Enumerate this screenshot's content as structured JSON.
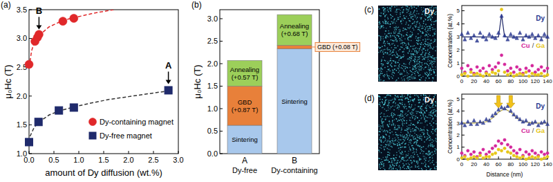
{
  "chart_data": [
    {
      "type": "scatter",
      "panel": "(a)",
      "xlabel": "amount of Dy diffusion (wt.%)",
      "ylabel": "μ₀Hc (T)",
      "xlim": [
        0,
        3.0
      ],
      "ylim": [
        1.0,
        3.5
      ],
      "xticks": [
        {
          "value": 0,
          "label": "0.0"
        },
        0.5,
        {
          "value": 1,
          "label": "1.0"
        },
        1.5,
        {
          "value": 2,
          "label": "2.0"
        },
        2.5,
        {
          "value": 3,
          "label": "3.0"
        }
      ],
      "yticks": [
        {
          "value": 1,
          "label": "1.0"
        },
        1.5,
        {
          "value": 2,
          "label": "2.0"
        },
        2.5,
        {
          "value": 3,
          "label": "3.0"
        },
        3.5
      ],
      "legend": "lower right",
      "series": [
        {
          "name": "Dy-containing magnet",
          "type": "scatter",
          "marker": "circle",
          "color": "#e0282a",
          "x": [
            0,
            0.12,
            0.17,
            0.2,
            0.68,
            0.9
          ],
          "values": [
            2.55,
            2.95,
            3.02,
            3.07,
            3.3,
            3.35
          ]
        },
        {
          "name": "Dy-free magnet",
          "type": "scatter",
          "marker": "square",
          "color": "#1f2a6b",
          "x": [
            0,
            0.19,
            0.6,
            0.9,
            2.8
          ],
          "values": [
            1.2,
            1.55,
            1.75,
            1.8,
            2.1
          ]
        },
        {
          "type": "line",
          "line_style": "dashed",
          "color": "#e0282a",
          "x": [
            0.02,
            0.05,
            0.1,
            0.2,
            0.4,
            0.6,
            0.8,
            1.0,
            1.3,
            1.7
          ],
          "values": [
            2.6,
            2.78,
            2.92,
            3.05,
            3.2,
            3.28,
            3.34,
            3.38,
            3.44,
            3.5
          ]
        },
        {
          "type": "line",
          "line_style": "dashed",
          "color": "#333333",
          "x": [
            0.02,
            0.1,
            0.2,
            0.4,
            0.6,
            0.9,
            1.2,
            1.6,
            2.0,
            2.4,
            2.8
          ],
          "values": [
            1.3,
            1.45,
            1.55,
            1.67,
            1.74,
            1.81,
            1.87,
            1.94,
            1.99,
            2.04,
            2.09
          ]
        }
      ],
      "annotations": [
        {
          "text": "A",
          "x": 2.8,
          "y": 2.1
        },
        {
          "text": "B",
          "x": 0.2,
          "y": 3.05
        }
      ]
    },
    {
      "type": "bar",
      "panel": "(b)",
      "stacked": true,
      "data_labels": true,
      "ylabel": "μ₀Hc (T)",
      "categories": [
        "A",
        "B"
      ],
      "category_notes": [
        "Dy-free",
        "Dy-containing"
      ],
      "ylim": [
        0,
        3.2
      ],
      "yticks": [
        {
          "value": 0,
          "label": "0.0"
        },
        0.5,
        {
          "value": 1,
          "label": "1.0"
        },
        1.5,
        {
          "value": 2,
          "label": "2.0"
        },
        2.5,
        {
          "value": 3,
          "label": "3.0"
        }
      ],
      "series": [
        {
          "name": "Sintering",
          "color": "#a8c8ec",
          "values": [
            0.63,
            2.33
          ]
        },
        {
          "name": "GBD",
          "color": "#e8803a",
          "values": [
            0.87,
            0.08
          ],
          "value_labels": [
            "GBD (+0.87 T)",
            "GBD (+0.08 T)"
          ]
        },
        {
          "name": "Annealing",
          "color": "#9ccf5a",
          "values": [
            0.57,
            0.68
          ],
          "value_labels": [
            "Annealing (+0.57 T)",
            "Annealing (+0.68 T)"
          ]
        }
      ]
    },
    {
      "type": "image",
      "panel": "(c)",
      "label": "Dy"
    },
    {
      "type": "scatter",
      "ylabel": "Concentration (at.%)",
      "xlim": [
        0,
        140
      ],
      "ylim": [
        0,
        5.4
      ],
      "xticks": [
        0,
        20,
        40,
        60,
        80,
        100,
        120,
        140
      ],
      "yticks": [
        0,
        1,
        2,
        3,
        4,
        5
      ],
      "name_separator": "/",
      "x": [
        0,
        5,
        10,
        15,
        20,
        25,
        30,
        35,
        40,
        45,
        50,
        55,
        60,
        65,
        70,
        75,
        80,
        85,
        90,
        95,
        100,
        105,
        110,
        115,
        120,
        125,
        130,
        135,
        140
      ],
      "series": [
        {
          "name": "Dy",
          "type": "scatter",
          "marker": "triangle",
          "color": "#2b3990",
          "values": [
            3.2,
            2.8,
            3.3,
            2.9,
            3.1,
            2.7,
            3.3,
            3.0,
            2.8,
            3.2,
            3.0,
            2.9,
            3.3,
            4.6,
            3.1,
            2.8,
            3.2,
            3.0,
            2.9,
            3.3,
            2.8,
            3.1,
            3.0,
            3.2,
            2.9,
            3.1,
            2.8,
            3.2,
            3.0
          ]
        },
        {
          "name": "Cu",
          "type": "scatter",
          "marker": "circle",
          "color": "#d4279b",
          "values": [
            0.6,
            0.3,
            0.8,
            0.5,
            0.2,
            0.7,
            0.4,
            0.6,
            0.3,
            0.8,
            0.5,
            0.7,
            1.0,
            1.6,
            0.9,
            0.4,
            0.6,
            0.3,
            0.7,
            0.5,
            0.2,
            0.6,
            0.4,
            0.8,
            0.3,
            0.5,
            0.7,
            0.4,
            0.6
          ]
        },
        {
          "name": "Ga",
          "type": "scatter",
          "marker": "circle",
          "color": "#e6c619",
          "values": [
            0.1,
            0.2,
            0.0,
            0.3,
            0.1,
            0.2,
            0.1,
            0.0,
            0.2,
            0.1,
            0.3,
            0.2,
            0.4,
            5.1,
            0.3,
            0.1,
            0.2,
            0.0,
            0.1,
            0.2,
            0.1,
            0.3,
            0.0,
            0.2,
            0.1,
            0.1,
            0.2,
            0.0,
            0.1
          ]
        },
        {
          "type": "line",
          "color": "#1b2566",
          "x": [
            0,
            60,
            65,
            70,
            140
          ],
          "values": [
            3.0,
            3.0,
            4.7,
            3.0,
            3.0
          ]
        }
      ]
    },
    {
      "type": "image",
      "panel": "(d)",
      "label": "Dy"
    },
    {
      "type": "scatter",
      "xlabel": "Distance (nm)",
      "ylabel": "Concentration (at.%)",
      "xlim": [
        0,
        140
      ],
      "ylim": [
        0,
        5.4
      ],
      "xticks": [
        0,
        20,
        40,
        60,
        80,
        100,
        120,
        140
      ],
      "yticks": [
        0,
        1,
        2,
        3,
        4,
        5
      ],
      "name_separator": "/",
      "x": [
        0,
        5,
        10,
        15,
        20,
        25,
        30,
        35,
        40,
        45,
        50,
        55,
        60,
        65,
        70,
        75,
        80,
        85,
        90,
        95,
        100,
        105,
        110,
        115,
        120,
        125,
        130,
        135,
        140
      ],
      "series": [
        {
          "name": "Dy",
          "type": "scatter",
          "marker": "triangle",
          "color": "#2b3990",
          "values": [
            3.0,
            2.8,
            3.1,
            2.9,
            3.2,
            2.9,
            3.1,
            3.0,
            3.3,
            3.2,
            3.6,
            3.8,
            4.1,
            4.3,
            4.2,
            4.4,
            4.0,
            3.7,
            3.5,
            3.3,
            3.1,
            3.2,
            2.9,
            3.0,
            3.1,
            2.8,
            3.0,
            3.1,
            2.9
          ]
        },
        {
          "name": "Cu",
          "type": "scatter",
          "marker": "circle",
          "color": "#d4279b",
          "values": [
            0.5,
            0.3,
            0.7,
            0.4,
            0.6,
            0.2,
            0.5,
            0.8,
            0.4,
            0.6,
            0.9,
            1.1,
            1.5,
            1.3,
            1.6,
            1.2,
            1.0,
            0.7,
            0.5,
            0.8,
            0.3,
            0.6,
            0.4,
            0.7,
            0.5,
            0.3,
            0.6,
            0.4,
            0.5
          ]
        },
        {
          "name": "Ga",
          "type": "scatter",
          "marker": "circle",
          "color": "#e6c619",
          "values": [
            0.1,
            0.2,
            0.0,
            0.1,
            0.2,
            0.1,
            0.3,
            0.1,
            0.2,
            0.2,
            0.4,
            0.5,
            0.8,
            0.7,
            0.9,
            0.6,
            0.5,
            0.3,
            0.2,
            0.1,
            0.2,
            0.0,
            0.1,
            0.2,
            0.1,
            0.2,
            0.0,
            0.1,
            0.2
          ]
        },
        {
          "type": "line",
          "color": "#b5a642",
          "x": [
            0,
            20,
            40,
            50,
            60,
            70,
            80,
            90,
            100,
            120,
            140
          ],
          "values": [
            3.0,
            3.0,
            3.1,
            3.4,
            3.9,
            4.2,
            3.9,
            3.4,
            3.1,
            3.0,
            3.0
          ]
        }
      ],
      "arrows": [
        {
          "x": 60
        },
        {
          "x": 80
        }
      ]
    }
  ]
}
